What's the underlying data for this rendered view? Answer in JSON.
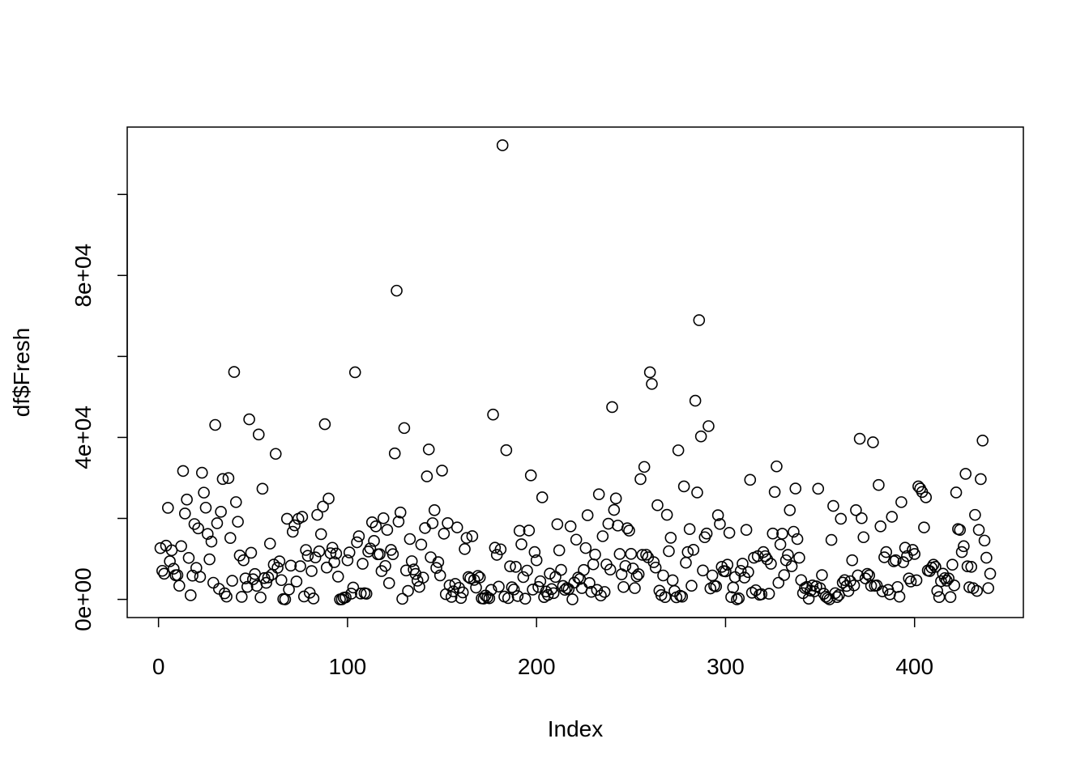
{
  "chart_data": {
    "type": "scatter",
    "x_label": "Index",
    "y_label": "df$Fresh",
    "x": [
      1,
      2,
      3,
      4,
      5,
      6,
      7,
      8,
      9,
      10,
      11,
      12,
      13,
      14,
      15,
      16,
      17,
      18,
      19,
      20,
      21,
      22,
      23,
      24,
      25,
      26,
      27,
      28,
      29,
      30,
      31,
      32,
      33,
      34,
      35,
      36,
      37,
      38,
      39,
      40,
      41,
      42,
      43,
      44,
      45,
      46,
      47,
      48,
      49,
      50,
      51,
      52,
      53,
      54,
      55,
      56,
      57,
      58,
      59,
      60,
      61,
      62,
      63,
      64,
      65,
      66,
      67,
      68,
      69,
      70,
      71,
      72,
      73,
      74,
      75,
      76,
      77,
      78,
      79,
      80,
      81,
      82,
      83,
      84,
      85,
      86,
      87,
      88,
      89,
      90,
      91,
      92,
      93,
      94,
      95,
      96,
      97,
      98,
      99,
      100,
      101,
      102,
      103,
      104,
      105,
      106,
      107,
      108,
      109,
      110,
      111,
      112,
      113,
      114,
      115,
      116,
      117,
      118,
      119,
      120,
      121,
      122,
      123,
      124,
      125,
      126,
      127,
      128,
      129,
      130,
      131,
      132,
      133,
      134,
      135,
      136,
      137,
      138,
      139,
      140,
      141,
      142,
      143,
      144,
      145,
      146,
      147,
      148,
      149,
      150,
      151,
      152,
      153,
      154,
      155,
      156,
      157,
      158,
      159,
      160,
      161,
      162,
      163,
      164,
      165,
      166,
      167,
      168,
      169,
      170,
      171,
      172,
      173,
      174,
      175,
      176,
      177,
      178,
      179,
      180,
      181,
      182,
      183,
      184,
      185,
      186,
      187,
      188,
      189,
      190,
      191,
      192,
      193,
      194,
      195,
      196,
      197,
      198,
      199,
      200,
      201,
      202,
      203,
      204,
      205,
      206,
      207,
      208,
      209,
      210,
      211,
      212,
      213,
      214,
      215,
      216,
      217,
      218,
      219,
      220,
      221,
      222,
      223,
      224,
      225,
      226,
      227,
      228,
      229,
      230,
      231,
      232,
      233,
      234,
      235,
      236,
      237,
      238,
      239,
      240,
      241,
      242,
      243,
      244,
      245,
      246,
      247,
      248,
      249,
      250,
      251,
      252,
      253,
      254,
      255,
      256,
      257,
      258,
      259,
      260,
      261,
      262,
      263,
      264,
      265,
      266,
      267,
      268,
      269,
      270,
      271,
      272,
      273,
      274,
      275,
      276,
      277,
      278,
      279,
      280,
      281,
      282,
      283,
      284,
      285,
      286,
      287,
      288,
      289,
      290,
      291,
      292,
      293,
      294,
      295,
      296,
      297,
      298,
      299,
      300,
      301,
      302,
      303,
      304,
      305,
      306,
      307,
      308,
      309,
      310,
      311,
      312,
      313,
      314,
      315,
      316,
      317,
      318,
      319,
      320,
      321,
      322,
      323,
      324,
      325,
      326,
      327,
      328,
      329,
      330,
      331,
      332,
      333,
      334,
      335,
      336,
      337,
      338,
      339,
      340,
      341,
      342,
      343,
      344,
      345,
      346,
      347,
      348,
      349,
      350,
      351,
      352,
      353,
      354,
      355,
      356,
      357,
      358,
      359,
      360,
      361,
      362,
      363,
      364,
      365,
      366,
      367,
      368,
      369,
      370,
      371,
      372,
      373,
      374,
      375,
      376,
      377,
      378,
      379,
      380,
      381,
      382,
      383,
      384,
      385,
      386,
      387,
      388,
      389,
      390,
      391,
      392,
      393,
      394,
      395,
      396,
      397,
      398,
      399,
      400,
      401,
      402,
      403,
      404,
      405,
      406,
      407,
      408,
      409,
      410,
      411,
      412,
      413,
      414,
      415,
      416,
      417,
      418,
      419,
      420,
      421,
      422,
      423,
      424,
      425,
      426,
      427,
      428,
      429,
      430,
      431,
      432,
      433,
      434,
      435,
      436,
      437,
      438,
      439,
      440
    ],
    "values": [
      12669,
      7057,
      6353,
      13265,
      22615,
      9413,
      12126,
      7579,
      5963,
      6006,
      3366,
      13146,
      31714,
      21217,
      24653,
      10253,
      1020,
      5876,
      18601,
      7780,
      17546,
      5567,
      31276,
      26373,
      22647,
      16165,
      9898,
      14276,
      4113,
      43088,
      18815,
      2612,
      21632,
      29729,
      1502,
      688,
      29955,
      15168,
      4591,
      56159,
      24025,
      19176,
      10850,
      630,
      9670,
      5181,
      3103,
      44466,
      11519,
      4967,
      6269,
      3347,
      40721,
      491,
      27329,
      5264,
      4098,
      5417,
      13779,
      6137,
      8590,
      35942,
      7823,
      9396,
      4760,
      85,
      9,
      19913,
      2446,
      8352,
      16705,
      18291,
      4420,
      19899,
      8190,
      20398,
      717,
      12205,
      10766,
      1640,
      7005,
      219,
      10362,
      20874,
      11867,
      16117,
      22925,
      43265,
      7864,
      24904,
      11405,
      12754,
      9198,
      11314,
      5626,
      3,
      23,
      403,
      503,
      9658,
      11594,
      1420,
      2932,
      56082,
      14100,
      15587,
      1454,
      8797,
      1531,
      1406,
      11818,
      12579,
      19046,
      14438,
      18044,
      11134,
      11173,
      6990,
      20049,
      8258,
      17160,
      4020,
      12212,
      11170,
      36050,
      76237,
      19219,
      21465,
      140,
      42312,
      7149,
      2101,
      14903,
      9434,
      7388,
      6300,
      4625,
      3087,
      13537,
      5387,
      17623,
      30379,
      37036,
      10405,
      18827,
      22039,
      7769,
      9203,
      5924,
      31812,
      16225,
      1289,
      18840,
      3463,
      622,
      1989,
      3830,
      17773,
      2861,
      355,
      1725,
      12434,
      15177,
      5531,
      5224,
      15615,
      4822,
      2926,
      5809,
      5414,
      260,
      200,
      955,
      514,
      286,
      2343,
      45640,
      12759,
      11002,
      3157,
      12356,
      112151,
      694,
      36847,
      327,
      8170,
      3009,
      2438,
      8040,
      834,
      16936,
      13624,
      5509,
      180,
      7107,
      17023,
      30624,
      2427,
      11686,
      9670,
      3067,
      4484,
      25203,
      583,
      1956,
      1107,
      6373,
      2541,
      1537,
      5550,
      18567,
      12119,
      7291,
      3317,
      2362,
      2806,
      2532,
      18044,
      18,
      4155,
      14755,
      5396,
      5041,
      2790,
      7274,
      12680,
      20782,
      4042,
      1869,
      8656,
      11072,
      2344,
      25962,
      964,
      15603,
      1838,
      8635,
      18692,
      7363,
      47493,
      22096,
      24929,
      18226,
      11210,
      6202,
      3062,
      8258,
      17565,
      16980,
      11243,
      7634,
      2785,
      5695,
      6221,
      29703,
      11004,
      32717,
      11034,
      10386,
      56083,
      53205,
      9193,
      7858,
      23257,
      2153,
      1073,
      5909,
      572,
      20893,
      11908,
      15218,
      4720,
      2083,
      514,
      36817,
      894,
      680,
      27901,
      9061,
      11693,
      17360,
      3366,
      12238,
      49063,
      26400,
      68951,
      40254,
      7149,
      15354,
      16260,
      42786,
      2708,
      5909,
      3366,
      3218,
      20782,
      18629,
      8040,
      7005,
      6913,
      8565,
      16448,
      571,
      2926,
      5509,
      18,
      280,
      7057,
      8823,
      5396,
      17160,
      6753,
      29526,
      1656,
      10290,
      2262,
      10676,
      1156,
      1270,
      11686,
      10683,
      9906,
      1406,
      8797,
      16260,
      26539,
      32842,
      4113,
      13569,
      16225,
      6012,
      9658,
      11002,
      22039,
      8190,
      16705,
      27380,
      14903,
      10290,
      4760,
      1537,
      2806,
      3067,
      183,
      2161,
      3447,
      1983,
      3218,
      27329,
      2787,
      6006,
      1406,
      691,
      350,
      9,
      14682,
      23086,
      1537,
      580,
      1073,
      19913,
      4155,
      4760,
      3317,
      2062,
      4484,
      9670,
      3457,
      22039,
      5924,
      39679,
      20049,
      15354,
      5181,
      6300,
      5924,
      3366,
      38793,
      3366,
      3457,
      28257,
      18044,
      1983,
      10403,
      11686,
      2344,
      1270,
      20398,
      9413,
      9670,
      3062,
      677,
      24025,
      9193,
      12759,
      10683,
      5181,
      4420,
      12212,
      11210,
      4720,
      27901,
      27380,
      26539,
      17773,
      25203,
      7149,
      6990,
      7858,
      8565,
      8040,
      2101,
      571,
      4484,
      6353,
      5263,
      4625,
      5181,
      580,
      8565,
      3457,
      26400,
      17360,
      17160,
      11693,
      13134,
      31012,
      8170,
      3009,
      8040,
      2787,
      20874,
      2101,
      17160,
      29703,
      39228,
      14531,
      10290,
      2787,
      6353
    ],
    "color": "#000000",
    "xlim": [
      -16.56,
      457.56
    ],
    "ylim": [
      -4483,
      116637
    ],
    "xticks": [
      0,
      100,
      200,
      300,
      400
    ],
    "yticks": [
      {
        "value": 0,
        "label": "0e+00"
      },
      {
        "value": 20000,
        "label": null
      },
      {
        "value": 40000,
        "label": "4e+04"
      },
      {
        "value": 60000,
        "label": null
      },
      {
        "value": 80000,
        "label": "8e+04"
      },
      {
        "value": 100000,
        "label": null
      }
    ]
  }
}
